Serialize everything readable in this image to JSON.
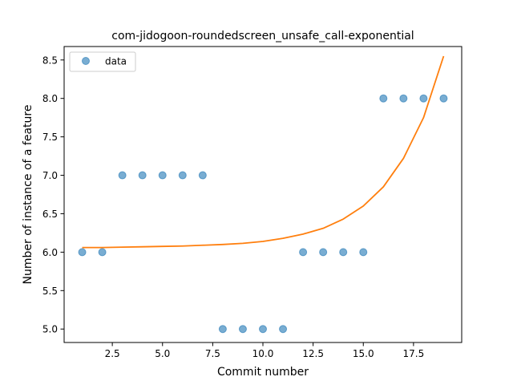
{
  "chart_data": {
    "type": "scatter",
    "title": "com-jidogoon-roundedscreen_unsafe_call-exponential",
    "xlabel": "Commit number",
    "ylabel": "Number of instance of a feature",
    "xlim": [
      0.1,
      19.9
    ],
    "ylim": [
      4.825,
      8.675
    ],
    "xticks": [
      2.5,
      5.0,
      7.5,
      10.0,
      12.5,
      15.0,
      17.5
    ],
    "xtick_labels": [
      "2.5",
      "5.0",
      "7.5",
      "10.0",
      "12.5",
      "15.0",
      "17.5"
    ],
    "yticks": [
      5.0,
      5.5,
      6.0,
      6.5,
      7.0,
      7.5,
      8.0,
      8.5
    ],
    "ytick_labels": [
      "5.0",
      "5.5",
      "6.0",
      "6.5",
      "7.0",
      "7.5",
      "8.0",
      "8.5"
    ],
    "grid": false,
    "legend": {
      "position": "upper-left",
      "entries": [
        "data"
      ]
    },
    "series": [
      {
        "name": "data",
        "kind": "scatter",
        "color": "#1f77b4",
        "x": [
          1,
          2,
          3,
          4,
          5,
          6,
          7,
          8,
          9,
          10,
          11,
          12,
          13,
          14,
          15,
          16,
          17,
          18,
          19
        ],
        "y": [
          6,
          6,
          7,
          7,
          7,
          7,
          7,
          5,
          5,
          5,
          5,
          6,
          6,
          6,
          6,
          8,
          8,
          8,
          8
        ]
      },
      {
        "kind": "line",
        "color": "#ff7f0e",
        "x": [
          1,
          2,
          3,
          4,
          5,
          6,
          7,
          8,
          9,
          10,
          11,
          12,
          13,
          14,
          15,
          16,
          17,
          18,
          19
        ],
        "y": [
          6.06,
          6.06,
          6.065,
          6.07,
          6.075,
          6.08,
          6.09,
          6.1,
          6.115,
          6.14,
          6.18,
          6.235,
          6.31,
          6.43,
          6.6,
          6.85,
          7.22,
          7.75,
          8.55
        ]
      }
    ]
  }
}
